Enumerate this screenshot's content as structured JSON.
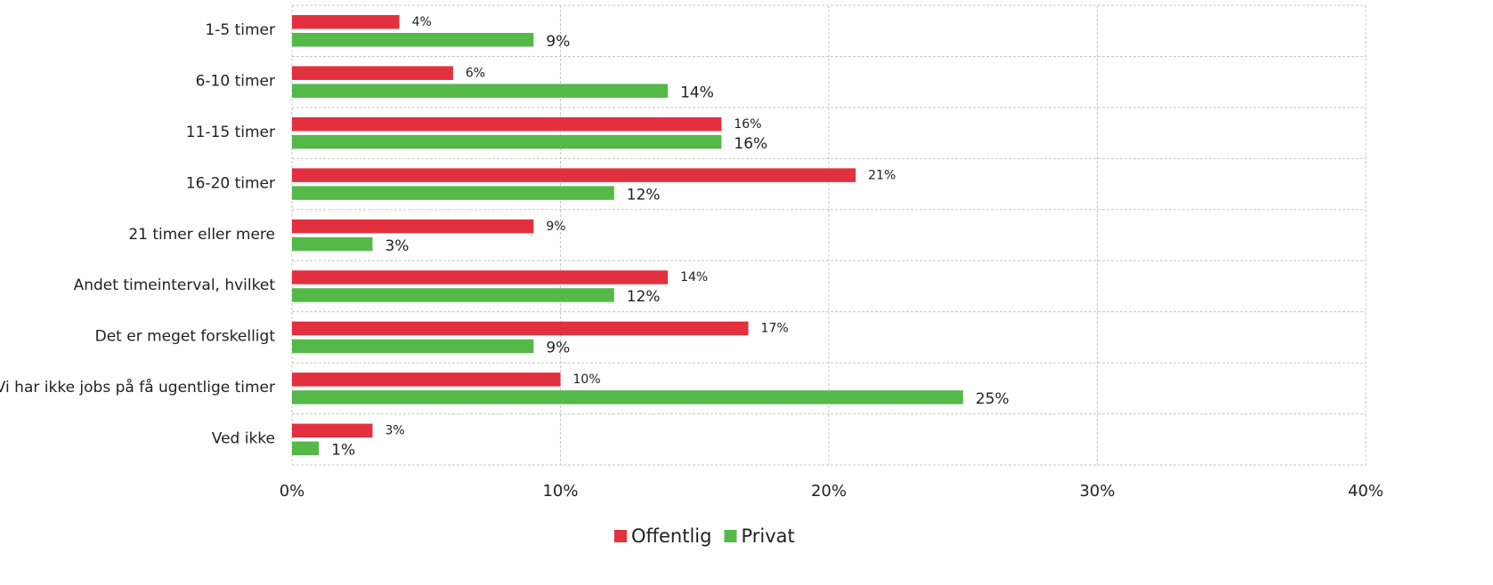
{
  "chart_data": {
    "type": "hbar",
    "categories": [
      "1-5 timer",
      "6-10 timer",
      "11-15 timer",
      "16-20 timer",
      "21 timer eller mere",
      "Andet timeinterval, hvilket",
      "Det er meget forskelligt",
      "Vi har ikke jobs på få ugentlige timer",
      "Ved ikke"
    ],
    "series": [
      {
        "name": "Offentlig",
        "color": "#e3303e",
        "values": [
          4,
          6,
          16,
          21,
          9,
          14,
          17,
          10,
          3
        ],
        "value_labels": [
          "4%",
          "6%",
          "16%",
          "21%",
          "9%",
          "14%",
          "17%",
          "10%",
          "3%"
        ]
      },
      {
        "name": "Privat",
        "color": "#54b948",
        "values": [
          9,
          14,
          16,
          12,
          3,
          12,
          9,
          25,
          1
        ],
        "value_labels": [
          "9%",
          "14%",
          "16%",
          "12%",
          "3%",
          "12%",
          "9%",
          "25%",
          "1%"
        ]
      }
    ],
    "xlim": [
      0,
      40
    ],
    "xticks": [
      {
        "value": 0,
        "label": "0%"
      },
      {
        "value": 10,
        "label": "10%"
      },
      {
        "value": 20,
        "label": "20%"
      },
      {
        "value": 30,
        "label": "30%"
      },
      {
        "value": 40,
        "label": "40%"
      }
    ],
    "grid": true,
    "legend": "bottom"
  }
}
